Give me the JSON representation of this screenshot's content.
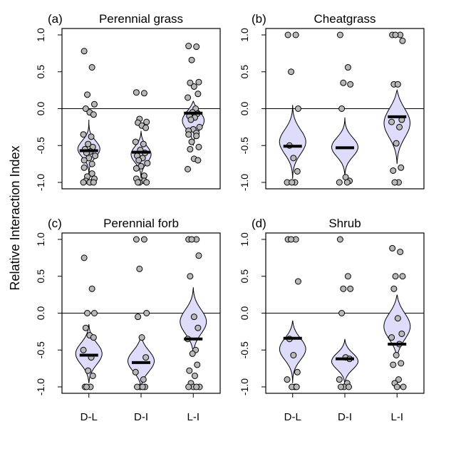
{
  "figure": {
    "ylabel": "Relative Interaction Index"
  },
  "chart_data": [
    {
      "type": "scatter",
      "panel_label": "(a)",
      "title": "Perennial grass",
      "categories": [
        "D-L",
        "D-I",
        "L-I"
      ],
      "ylim": [
        -1.0,
        1.0
      ],
      "yticks": [
        "1.0",
        "0.5",
        "0.0",
        "-0.5",
        "-1.0"
      ],
      "reference_line": 0.0,
      "violin_center": [
        -0.55,
        -0.62,
        -0.15
      ],
      "violin_width": [
        0.42,
        0.38,
        0.42
      ],
      "violin_sd": [
        0.12,
        0.12,
        0.14
      ],
      "violin_range": [
        [
          -0.9,
          -0.15
        ],
        [
          -0.95,
          -0.3
        ],
        [
          -0.5,
          0.1
        ]
      ],
      "medians": [
        -0.57,
        -0.59,
        -0.06
      ],
      "points": [
        [
          0.78,
          0.56,
          0.19,
          0.06,
          0.0,
          -0.05,
          -0.08,
          -0.35,
          -0.38,
          -0.48,
          -0.52,
          -0.55,
          -0.58,
          -0.6,
          -0.64,
          -0.67,
          -0.7,
          -0.75,
          -0.8,
          -0.88,
          -0.92,
          -0.95,
          -0.98,
          -1.0,
          -1.0,
          -1.0
        ],
        [
          0.22,
          0.21,
          -0.14,
          -0.18,
          -0.19,
          -0.23,
          -0.26,
          -0.45,
          -0.48,
          -0.56,
          -0.6,
          -0.64,
          -0.67,
          -0.7,
          -0.74,
          -0.78,
          -0.81,
          -0.91,
          -0.95,
          -0.98,
          -1.0,
          -1.0,
          -1.0
        ],
        [
          0.85,
          0.84,
          0.66,
          0.36,
          0.35,
          0.3,
          0.2,
          0.15,
          0.0,
          -0.05,
          -0.07,
          -0.1,
          -0.12,
          -0.15,
          -0.25,
          -0.28,
          -0.3,
          -0.33,
          -0.35,
          -0.37,
          -0.45,
          -0.52,
          -0.55,
          -0.68,
          -0.7,
          -0.82
        ]
      ]
    },
    {
      "type": "scatter",
      "panel_label": "(b)",
      "title": "Cheatgrass",
      "categories": [
        "D-L",
        "D-I",
        "L-I"
      ],
      "ylim": [
        -1.0,
        1.0
      ],
      "yticks": [
        "1.0",
        "0.5",
        "0.0",
        "-0.5",
        "-1.0"
      ],
      "reference_line": 0.0,
      "violin_center": [
        -0.45,
        -0.52,
        -0.18
      ],
      "violin_width": [
        0.5,
        0.5,
        0.5
      ],
      "violin_sd": [
        0.18,
        0.14,
        0.22
      ],
      "violin_range": [
        [
          -0.95,
          0.05
        ],
        [
          -0.95,
          -0.12
        ],
        [
          -0.75,
          0.25
        ]
      ],
      "medians": [
        -0.51,
        -0.53,
        -0.11
      ],
      "points": [
        [
          1.0,
          1.0,
          0.5,
          0.0,
          -0.5,
          -0.67,
          -0.85,
          -1.0,
          -1.0,
          -1.0
        ],
        [
          1.0,
          0.56,
          0.35,
          0.33,
          0.0,
          -0.93,
          -0.98,
          -1.0,
          -1.0
        ],
        [
          1.0,
          1.0,
          1.0,
          0.92,
          0.33,
          0.33,
          -0.15,
          -0.18,
          -0.25,
          -0.47,
          -0.8,
          -0.84,
          -1.0,
          -1.0
        ]
      ]
    },
    {
      "type": "scatter",
      "panel_label": "(c)",
      "title": "Perennial forb",
      "categories": [
        "D-L",
        "D-I",
        "L-I"
      ],
      "ylim": [
        -1.0,
        1.0
      ],
      "yticks": [
        "1.0",
        "0.5",
        "0.0",
        "-0.5",
        "-1.0"
      ],
      "reference_line": 0.0,
      "violin_center": [
        -0.55,
        -0.65,
        -0.12
      ],
      "violin_width": [
        0.5,
        0.5,
        0.5
      ],
      "violin_sd": [
        0.16,
        0.16,
        0.18
      ],
      "violin_range": [
        [
          -0.95,
          -0.15
        ],
        [
          -1.0,
          -0.3
        ],
        [
          -0.55,
          0.35
        ]
      ],
      "medians": [
        -0.57,
        -0.67,
        -0.35
      ],
      "points": [
        [
          0.75,
          0.33,
          0.0,
          0.0,
          -0.2,
          -0.3,
          -0.33,
          -0.5,
          -0.6,
          -0.78,
          -0.85,
          -1.0,
          -1.0,
          -1.0
        ],
        [
          1.0,
          1.0,
          0.6,
          0.0,
          -0.05,
          -0.33,
          -0.6,
          -0.8,
          -0.9,
          -1.0,
          -1.0,
          -1.0,
          -1.0
        ],
        [
          1.0,
          1.0,
          1.0,
          0.78,
          0.5,
          -0.05,
          -0.2,
          -0.35,
          -0.5,
          -0.55,
          -0.7,
          -0.78,
          -0.85,
          -0.95,
          -1.0,
          -1.0,
          -1.0,
          -1.0
        ]
      ]
    },
    {
      "type": "scatter",
      "panel_label": "(d)",
      "title": "Shrub",
      "categories": [
        "D-L",
        "D-I",
        "L-I"
      ],
      "ylim": [
        -1.0,
        1.0
      ],
      "yticks": [
        "1.0",
        "0.5",
        "0.0",
        "-0.5",
        "-1.0"
      ],
      "reference_line": 0.0,
      "violin_center": [
        -0.48,
        -0.65,
        -0.18
      ],
      "violin_width": [
        0.5,
        0.5,
        0.5
      ],
      "violin_sd": [
        0.16,
        0.12,
        0.2
      ],
      "violin_range": [
        [
          -0.95,
          -0.1
        ],
        [
          -0.98,
          -0.35
        ],
        [
          -0.6,
          0.25
        ]
      ],
      "medians": [
        -0.34,
        -0.62,
        -0.42
      ],
      "points": [
        [
          1.0,
          1.0,
          1.0,
          0.43,
          -0.35,
          -0.57,
          -0.8,
          -0.9,
          -1.0,
          -1.0,
          -1.0
        ],
        [
          1.0,
          0.5,
          0.33,
          0.33,
          0.0,
          -0.6,
          -0.62,
          -0.9,
          -0.95,
          -1.0,
          -1.0,
          -1.0
        ],
        [
          0.88,
          0.83,
          0.5,
          0.5,
          0.33,
          -0.07,
          -0.28,
          -0.33,
          -0.42,
          -0.57,
          -0.68,
          -0.7,
          -0.9,
          -0.95,
          -1.0,
          -1.0
        ]
      ]
    }
  ]
}
